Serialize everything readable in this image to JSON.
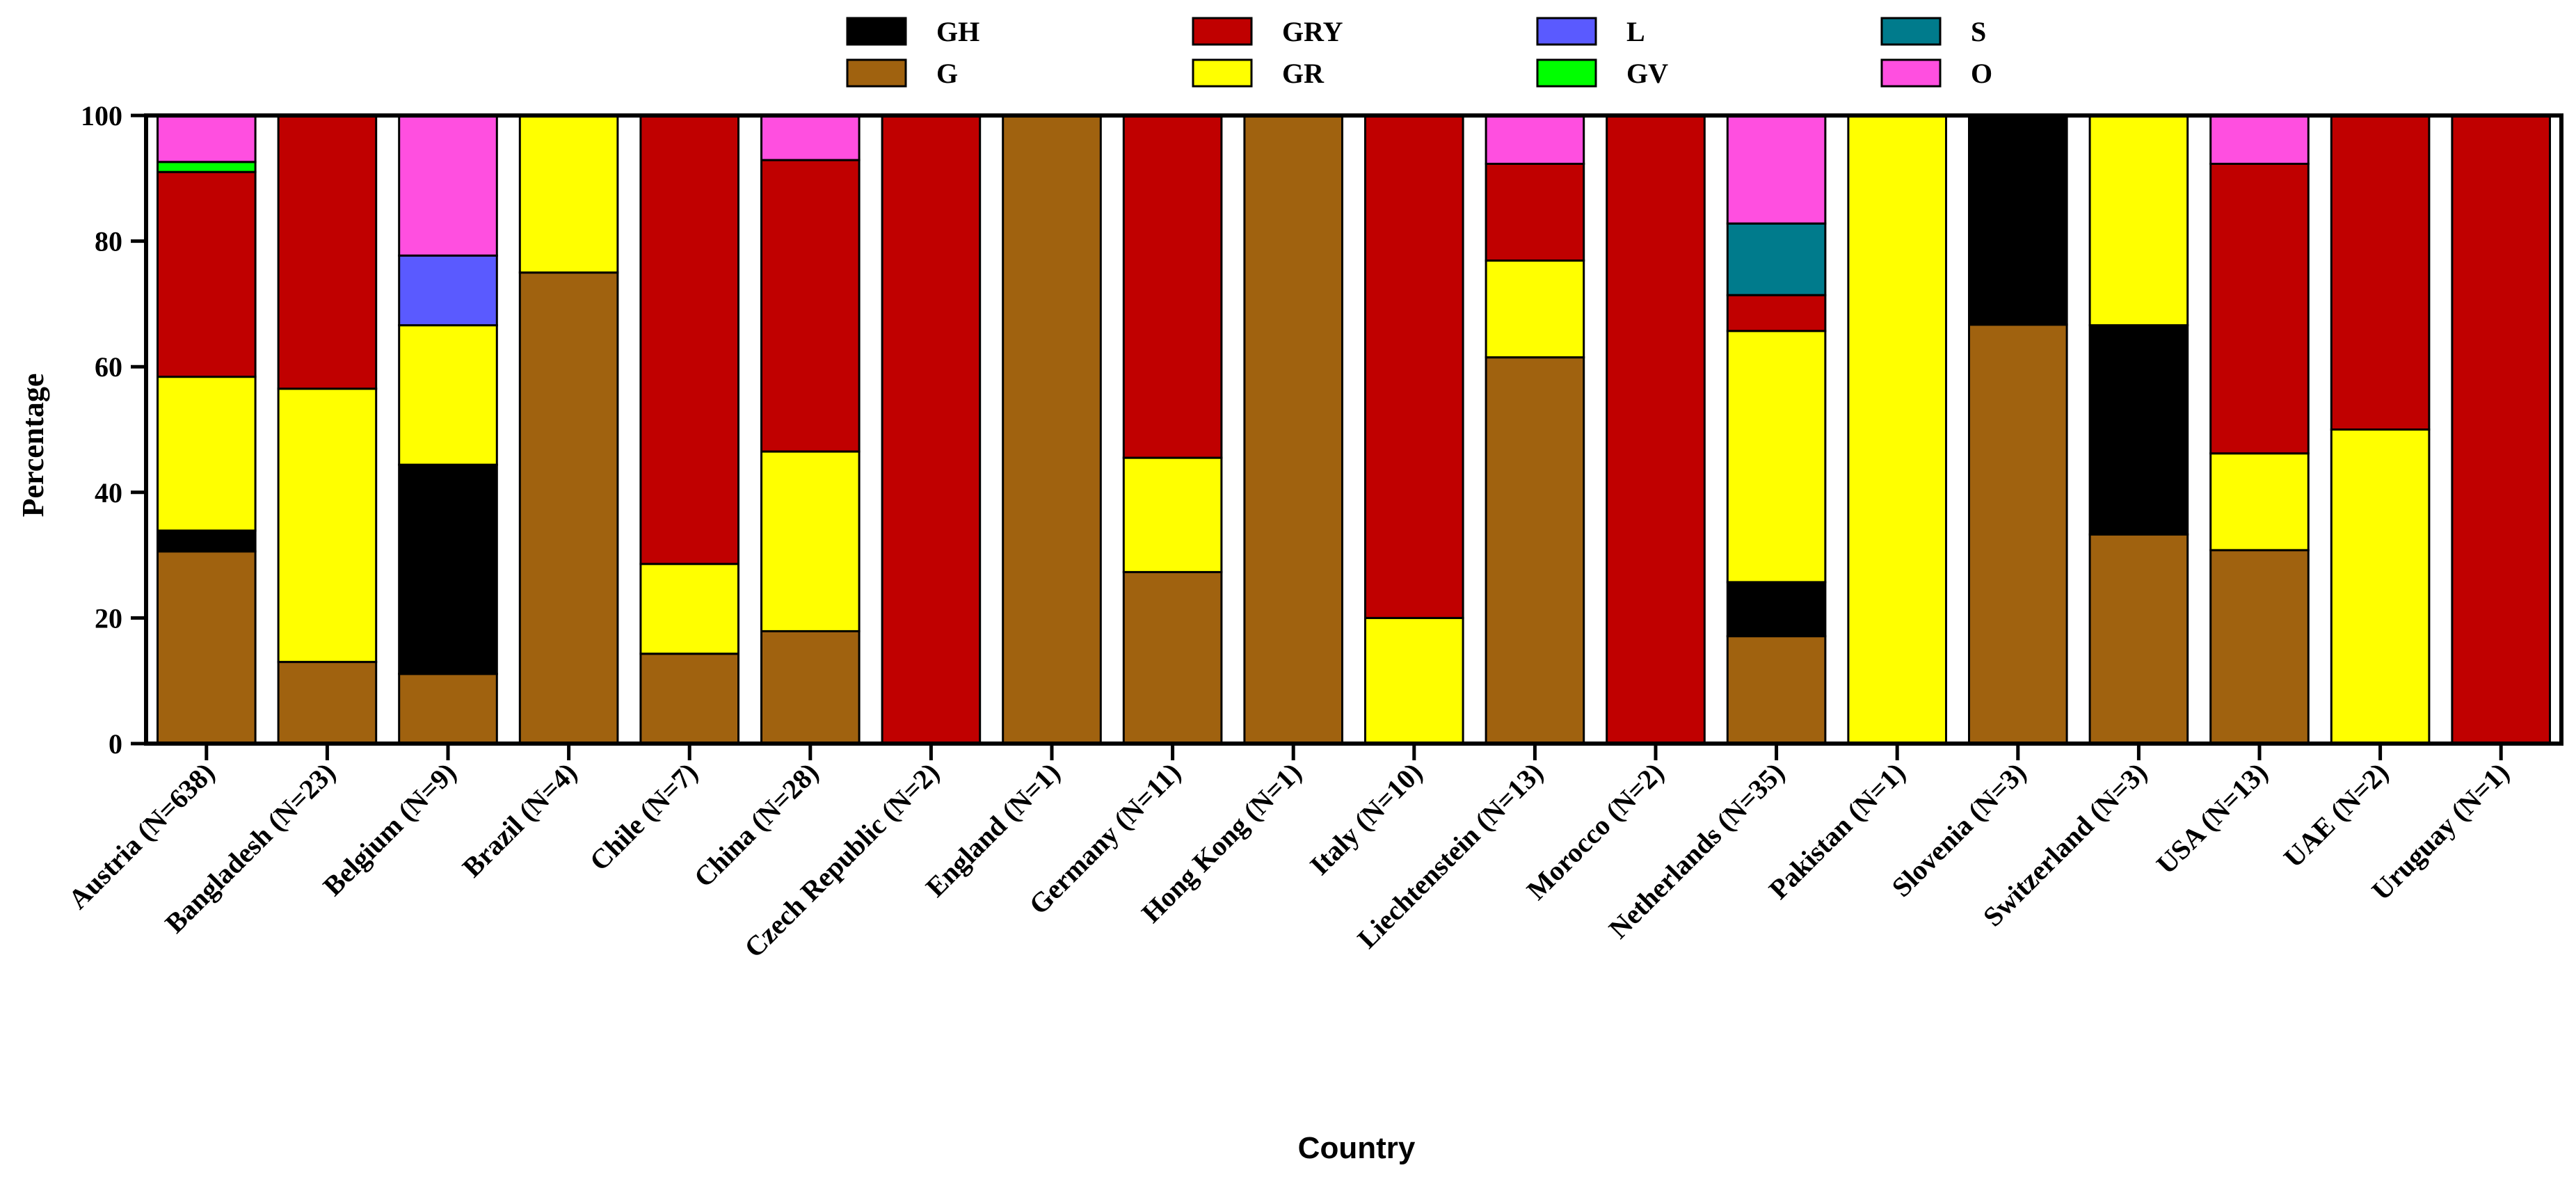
{
  "chart_data": {
    "type": "bar",
    "stacked": true,
    "title": "",
    "xlabel": "Country",
    "ylabel": "Percentage",
    "ylim": [
      0,
      100
    ],
    "yticks": [
      0,
      20,
      40,
      60,
      80,
      100
    ],
    "grid": false,
    "legend_position": "top-center",
    "categories": [
      "Austria (N=638)",
      "Bangladesh (N=23)",
      "Belgium (N=9)",
      "Brazil (N=4)",
      "Chile (N=7)",
      "China (N=28)",
      "Czech Republic (N=2)",
      "England (N=1)",
      "Germany (N=11)",
      "Hong Kong (N=1)",
      "Italy (N=10)",
      "Liechtenstein (N=13)",
      "Morocco (N=2)",
      "Netherlands (N=35)",
      "Pakistan (N=1)",
      "Slovenia (N=3)",
      "Switzerland (N=3)",
      "USA (N=13)",
      "UAE (N=2)",
      "Uruguay (N=1)"
    ],
    "series": [
      {
        "name": "G",
        "color": "#A0620F",
        "values": [
          30.6,
          13.0,
          11.1,
          75.0,
          14.3,
          17.9,
          0,
          100,
          27.3,
          100,
          0,
          61.5,
          0,
          17.1,
          0,
          66.7,
          33.3,
          30.8,
          0,
          0
        ]
      },
      {
        "name": "GH",
        "color": "#000000",
        "values": [
          3.3,
          0,
          33.3,
          0,
          0,
          0,
          0,
          0,
          0,
          0,
          0,
          0,
          0,
          8.6,
          0,
          33.3,
          33.3,
          0,
          0,
          0
        ]
      },
      {
        "name": "GR",
        "color": "#FFFF00",
        "values": [
          24.5,
          43.5,
          22.2,
          25.0,
          14.3,
          28.6,
          0,
          0,
          18.2,
          0,
          20.0,
          15.4,
          0,
          40.0,
          100,
          0,
          33.4,
          15.4,
          50.0,
          0
        ]
      },
      {
        "name": "GRY",
        "color": "#C00000",
        "values": [
          32.6,
          43.5,
          0,
          0,
          71.4,
          46.4,
          100,
          0,
          54.5,
          0,
          80.0,
          15.4,
          100,
          5.7,
          0,
          0,
          0,
          46.1,
          50.0,
          100
        ]
      },
      {
        "name": "GV",
        "color": "#00FF00",
        "values": [
          1.6,
          0,
          0,
          0,
          0,
          0,
          0,
          0,
          0,
          0,
          0,
          0,
          0,
          0,
          0,
          0,
          0,
          0,
          0,
          0
        ]
      },
      {
        "name": "L",
        "color": "#5A5AFF",
        "values": [
          0,
          0,
          11.1,
          0,
          0,
          0,
          0,
          0,
          0,
          0,
          0,
          0,
          0,
          0,
          0,
          0,
          0,
          0,
          0,
          0
        ]
      },
      {
        "name": "S",
        "color": "#007B8C",
        "values": [
          0,
          0,
          0,
          0,
          0,
          0,
          0,
          0,
          0,
          0,
          0,
          0,
          0,
          11.4,
          0,
          0,
          0,
          0,
          0,
          0
        ]
      },
      {
        "name": "O",
        "color": "#FF4FE0",
        "values": [
          7.4,
          0,
          22.3,
          0,
          0,
          7.1,
          0,
          0,
          0,
          0,
          0,
          7.7,
          0,
          17.2,
          0,
          0,
          0,
          7.7,
          0,
          0
        ]
      }
    ],
    "legend_order": [
      "GH",
      "G",
      "GRY",
      "GR",
      "L",
      "GV",
      "S",
      "O"
    ]
  }
}
